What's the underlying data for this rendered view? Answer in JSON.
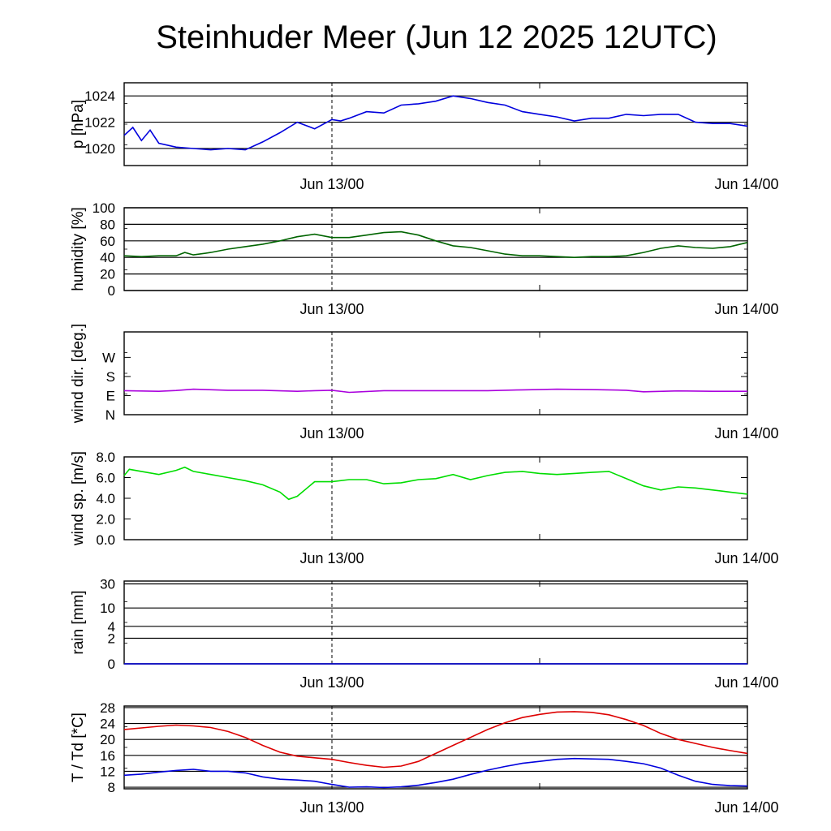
{
  "title": "Steinhuder Meer (Jun 12 2025 12UTC)",
  "x_tick_labels": [
    "Jun 13/00",
    "Jun 14/00"
  ],
  "chart_data": [
    {
      "type": "line",
      "ylabel": "p [hPa]",
      "ylim": [
        1018.7,
        1025.0
      ],
      "yticks": [
        1020,
        1022,
        1024
      ],
      "ytick_labels": [
        "1020",
        "1022",
        "1024"
      ],
      "grid": true,
      "series": [
        {
          "color": "#0000dd",
          "x": [
            12,
            12.5,
            13,
            13.5,
            14,
            15,
            16,
            17,
            18,
            19,
            20,
            21,
            22,
            23,
            24,
            24.5,
            25,
            26,
            27,
            28,
            29,
            30,
            31,
            32,
            33,
            34,
            35,
            36,
            37,
            38,
            39,
            40,
            41,
            42,
            43,
            44,
            45,
            46,
            47,
            48
          ],
          "y": [
            1021.0,
            1021.6,
            1020.6,
            1021.4,
            1020.4,
            1020.1,
            1020.0,
            1019.9,
            1020.0,
            1019.9,
            1020.5,
            1021.2,
            1022.0,
            1021.5,
            1022.2,
            1022.1,
            1022.3,
            1022.8,
            1022.7,
            1023.3,
            1023.4,
            1023.6,
            1024.0,
            1023.8,
            1023.5,
            1023.3,
            1022.8,
            1022.6,
            1022.4,
            1022.1,
            1022.3,
            1022.3,
            1022.6,
            1022.5,
            1022.6,
            1022.6,
            1022.0,
            1021.9,
            1021.9,
            1021.7
          ]
        }
      ]
    },
    {
      "type": "line",
      "ylabel": "humidity [%]",
      "ylim": [
        0,
        100
      ],
      "yticks": [
        0,
        20,
        40,
        60,
        80,
        100
      ],
      "ytick_labels": [
        "0",
        "20",
        "40",
        "60",
        "80",
        "100"
      ],
      "grid": true,
      "series": [
        {
          "color": "#006400",
          "x": [
            12,
            13,
            14,
            15,
            15.5,
            16,
            17,
            18,
            19,
            20,
            21,
            22,
            23,
            24,
            25,
            26,
            27,
            28,
            29,
            30,
            31,
            32,
            33,
            34,
            35,
            36,
            37,
            38,
            39,
            40,
            41,
            42,
            43,
            44,
            45,
            46,
            47,
            48
          ],
          "y": [
            42,
            41,
            42,
            42,
            46,
            43,
            46,
            50,
            53,
            56,
            60,
            65,
            68,
            64,
            64,
            67,
            70,
            71,
            67,
            60,
            54,
            52,
            48,
            44,
            42,
            42,
            41,
            40,
            41,
            41,
            42,
            46,
            51,
            54,
            52,
            51,
            53,
            58
          ]
        }
      ]
    },
    {
      "type": "line",
      "ylabel": "wind dir. [deg.]",
      "ylim": [
        0,
        390
      ],
      "yticks": [
        0,
        90,
        180,
        270
      ],
      "ytick_labels": [
        "N",
        "E",
        "S",
        "W"
      ],
      "grid": false,
      "series": [
        {
          "color": "#aa00dd",
          "x": [
            12,
            14,
            15,
            16,
            18,
            20,
            22,
            23,
            24,
            25,
            27,
            30,
            33,
            35,
            37,
            39,
            41,
            42,
            44,
            46,
            48
          ],
          "y": [
            113,
            110,
            114,
            120,
            115,
            115,
            110,
            113,
            115,
            105,
            113,
            113,
            113,
            117,
            120,
            118,
            115,
            108,
            112,
            110,
            110
          ]
        }
      ]
    },
    {
      "type": "line",
      "ylabel": "wind sp. [m/s]",
      "ylim": [
        0,
        8
      ],
      "yticks": [
        0,
        2,
        4,
        6,
        8
      ],
      "ytick_labels": [
        "0.0",
        "2.0",
        "4.0",
        "6.0",
        "8.0"
      ],
      "grid": false,
      "series": [
        {
          "color": "#00dd00",
          "x": [
            12,
            12.3,
            13,
            14,
            15,
            15.5,
            16,
            17,
            18,
            19,
            20,
            21,
            21.5,
            22,
            23,
            24,
            25,
            26,
            27,
            28,
            29,
            30,
            31,
            32,
            33,
            34,
            35,
            36,
            37,
            38,
            39,
            40,
            41,
            42,
            43,
            44,
            45,
            46,
            47,
            48
          ],
          "y": [
            6.2,
            6.8,
            6.6,
            6.3,
            6.7,
            7.0,
            6.6,
            6.3,
            6.0,
            5.7,
            5.3,
            4.6,
            3.9,
            4.2,
            5.6,
            5.6,
            5.8,
            5.8,
            5.4,
            5.5,
            5.8,
            5.9,
            6.3,
            5.8,
            6.2,
            6.5,
            6.6,
            6.4,
            6.3,
            6.4,
            6.5,
            6.6,
            5.9,
            5.2,
            4.8,
            5.1,
            5.0,
            4.8,
            4.6,
            4.4
          ]
        }
      ]
    },
    {
      "type": "line",
      "ylabel": "rain [mm]",
      "scale": "log",
      "yticks": [
        0,
        2,
        4,
        10,
        30
      ],
      "ytick_labels": [
        "0",
        "2",
        "4",
        "10",
        "30"
      ],
      "grid": true,
      "series": [
        {
          "color": "#0000dd",
          "x": [
            12,
            48
          ],
          "y": [
            0,
            0
          ]
        }
      ]
    },
    {
      "type": "line",
      "ylabel": "T / Td [*C]",
      "ylim": [
        7.6,
        28.4
      ],
      "yticks": [
        8,
        12,
        16,
        20,
        24,
        28
      ],
      "ytick_labels": [
        "8",
        "12",
        "16",
        "20",
        "24",
        "28"
      ],
      "grid": true,
      "series": [
        {
          "color": "#dd0000",
          "x": [
            12,
            13,
            14,
            15,
            16,
            17,
            18,
            19,
            20,
            21,
            22,
            23,
            24,
            25,
            26,
            27,
            28,
            29,
            30,
            31,
            32,
            33,
            34,
            35,
            36,
            37,
            38,
            39,
            40,
            41,
            42,
            43,
            44,
            45,
            46,
            47,
            48
          ],
          "y": [
            22.5,
            22.9,
            23.3,
            23.6,
            23.4,
            23.0,
            22.0,
            20.5,
            18.5,
            16.8,
            15.8,
            15.4,
            15.0,
            14.2,
            13.5,
            13.0,
            13.3,
            14.5,
            16.5,
            18.5,
            20.5,
            22.5,
            24.2,
            25.5,
            26.3,
            26.9,
            27.0,
            26.8,
            26.2,
            25.0,
            23.5,
            21.5,
            20.0,
            19.0,
            18.0,
            17.2,
            16.5
          ]
        },
        {
          "color": "#0000dd",
          "x": [
            12,
            13,
            14,
            15,
            16,
            17,
            18,
            19,
            20,
            21,
            22,
            23,
            24,
            25,
            26,
            27,
            28,
            29,
            30,
            31,
            32,
            33,
            34,
            35,
            36,
            37,
            38,
            39,
            40,
            41,
            42,
            43,
            44,
            45,
            46,
            47,
            48
          ],
          "y": [
            11.0,
            11.3,
            11.8,
            12.2,
            12.5,
            12.0,
            12.0,
            11.6,
            10.6,
            10.0,
            9.8,
            9.5,
            8.7,
            8.0,
            8.1,
            7.9,
            8.1,
            8.5,
            9.2,
            10.0,
            11.2,
            12.3,
            13.2,
            14.0,
            14.5,
            15.0,
            15.2,
            15.1,
            15.0,
            14.5,
            13.9,
            12.8,
            11.0,
            9.5,
            8.7,
            8.4,
            8.3
          ]
        }
      ]
    }
  ]
}
